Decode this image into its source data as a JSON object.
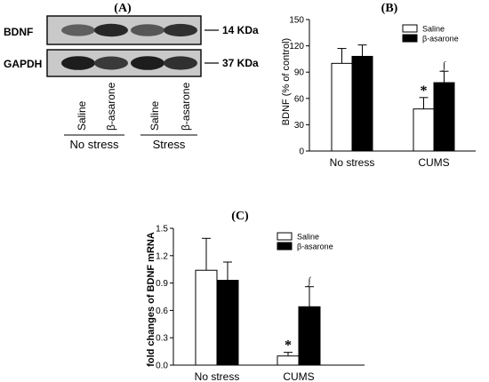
{
  "panel_a": {
    "label": "(A)",
    "rows": [
      {
        "protein": "BDNF",
        "size": "14 KDa",
        "intensities": [
          0.55,
          0.85,
          0.6,
          0.8
        ]
      },
      {
        "protein": "GAPDH",
        "size": "37 KDa",
        "intensities": [
          0.9,
          0.75,
          0.9,
          0.8
        ]
      }
    ],
    "lanes": [
      "Saline",
      "β-asarone",
      "Saline",
      "β-asarone"
    ],
    "groups": [
      "No stress",
      "Stress"
    ]
  },
  "chart_data": [
    {
      "panel": "(B)",
      "type": "bar",
      "ylabel": "BDNF (% of control)",
      "xlabel": "",
      "categories": [
        "No stress",
        "CUMS"
      ],
      "ylim": [
        0,
        150
      ],
      "yticks": [
        0,
        30,
        60,
        90,
        120,
        150
      ],
      "ytick_labels": [
        "0",
        "30",
        "60",
        "90",
        "120",
        "150"
      ],
      "legend_position": "top-right",
      "series": [
        {
          "name": "Saline",
          "fill": "#ffffff",
          "values": [
            100,
            48
          ],
          "errors": [
            17,
            13
          ],
          "markers": [
            "",
            "*"
          ]
        },
        {
          "name": "β-asarone",
          "fill": "#000000",
          "values": [
            108,
            78
          ],
          "errors": [
            13,
            13
          ],
          "markers": [
            "",
            "∫"
          ]
        }
      ]
    },
    {
      "panel": "(C)",
      "type": "bar",
      "ylabel": "fold changes of BDNF mRNA",
      "xlabel": "",
      "categories": [
        "No stress",
        "CUMS"
      ],
      "ylim": [
        0,
        1.5
      ],
      "yticks": [
        0,
        0.3,
        0.6,
        0.9,
        1.2,
        1.5
      ],
      "ytick_labels": [
        "0.0",
        "0.3",
        "0.6",
        "0.9",
        "1.2",
        "1.5"
      ],
      "legend_position": "top-right",
      "series": [
        {
          "name": "Saline",
          "fill": "#ffffff",
          "values": [
            1.04,
            0.1
          ],
          "errors": [
            0.35,
            0.04
          ],
          "markers": [
            "",
            "*"
          ]
        },
        {
          "name": "β-asarone",
          "fill": "#000000",
          "values": [
            0.93,
            0.64
          ],
          "errors": [
            0.2,
            0.22
          ],
          "markers": [
            "",
            "∫"
          ]
        }
      ]
    }
  ]
}
